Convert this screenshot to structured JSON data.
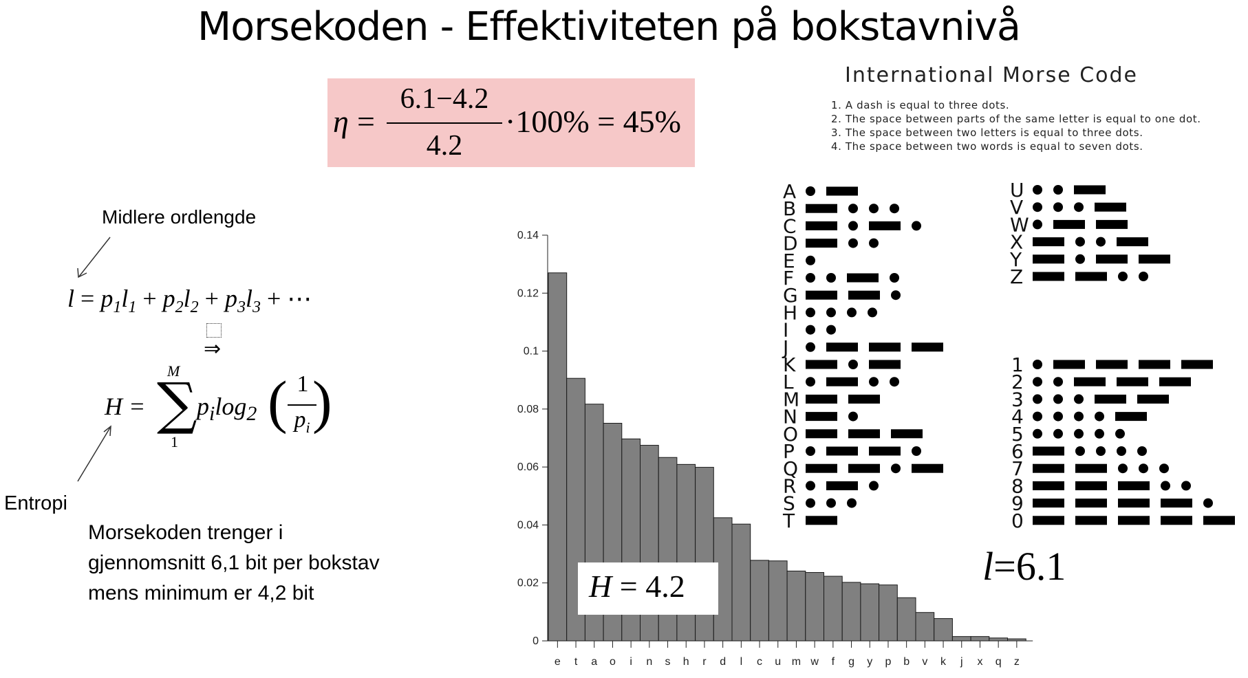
{
  "title": "Morsekoden - Effektiviteten på bokstavnivå",
  "efficiency": {
    "eta": "η",
    "equals": "=",
    "numerator": "6.1−4.2",
    "denominator": "4.2",
    "rest": "·100% = 45%",
    "highlight_color": "#f6c8c8"
  },
  "morse_chart": {
    "title": "International Morse Code",
    "rules": [
      "1. A dash is equal to three dots.",
      "2. The space between parts of the same letter is equal to one dot.",
      "3. The space between two letters is equal to three dots.",
      "4. The space between two words is equal to seven dots."
    ],
    "letters": [
      {
        "c": "A",
        "code": ".-"
      },
      {
        "c": "B",
        "code": "-..."
      },
      {
        "c": "C",
        "code": "-.-."
      },
      {
        "c": "D",
        "code": "-.."
      },
      {
        "c": "E",
        "code": "."
      },
      {
        "c": "F",
        "code": "..-."
      },
      {
        "c": "G",
        "code": "--."
      },
      {
        "c": "H",
        "code": "...."
      },
      {
        "c": "I",
        "code": ".."
      },
      {
        "c": "J",
        "code": ".---"
      },
      {
        "c": "K",
        "code": "-.-"
      },
      {
        "c": "L",
        "code": ".-.."
      },
      {
        "c": "M",
        "code": "--"
      },
      {
        "c": "N",
        "code": "-."
      },
      {
        "c": "O",
        "code": "---"
      },
      {
        "c": "P",
        "code": ".--."
      },
      {
        "c": "Q",
        "code": "--.-"
      },
      {
        "c": "R",
        "code": ".-."
      },
      {
        "c": "S",
        "code": "..."
      },
      {
        "c": "T",
        "code": "-"
      }
    ],
    "letters2": [
      {
        "c": "U",
        "code": "..-"
      },
      {
        "c": "V",
        "code": "...-"
      },
      {
        "c": "W",
        "code": ".--"
      },
      {
        "c": "X",
        "code": "-..-"
      },
      {
        "c": "Y",
        "code": "-.--"
      },
      {
        "c": "Z",
        "code": "--.."
      }
    ],
    "digits": [
      {
        "c": "1",
        "code": ".----"
      },
      {
        "c": "2",
        "code": "..---"
      },
      {
        "c": "3",
        "code": "...--"
      },
      {
        "c": "4",
        "code": "....-"
      },
      {
        "c": "5",
        "code": "....."
      },
      {
        "c": "6",
        "code": "-...."
      },
      {
        "c": "7",
        "code": "--..."
      },
      {
        "c": "8",
        "code": "---.."
      },
      {
        "c": "9",
        "code": "----."
      },
      {
        "c": "0",
        "code": "-----"
      }
    ]
  },
  "labels": {
    "midlere": "Midlere ordlengde",
    "entropi": "Entropi"
  },
  "formulas": {
    "l_lhs": "l",
    "l_terms": [
      {
        "p": "p",
        "psub": "1",
        "l": "l",
        "lsub": "1"
      },
      {
        "p": "p",
        "psub": "2",
        "l": "l",
        "lsub": "2"
      },
      {
        "p": "p",
        "psub": "3",
        "l": "l",
        "lsub": "3"
      }
    ],
    "l_tail": "+ ⋯",
    "implies": "⇒",
    "h_lhs": "H =",
    "sigma": "∑",
    "sigma_upper": "M",
    "sigma_lower": "1",
    "h_body_p": "p",
    "h_body_psub": "i",
    "h_body_log": "log",
    "h_body_logsub": "2",
    "h_frac_num": "1",
    "h_frac_den": "p",
    "h_frac_densub": "i"
  },
  "paragraph": [
    "Morsekoden trenger i",
    "gjennomsnitt 6,1 bit per bokstav",
    "mens minimum er 4,2 bit"
  ],
  "h_value": {
    "lhs": "H",
    "eq": "=",
    "val": "4.2"
  },
  "l_value": {
    "lhs": "l",
    "eq": "=",
    "val": "6.1"
  },
  "chart_data": {
    "type": "bar",
    "categories": [
      "e",
      "t",
      "a",
      "o",
      "i",
      "n",
      "s",
      "h",
      "r",
      "d",
      "l",
      "c",
      "u",
      "m",
      "w",
      "f",
      "g",
      "y",
      "p",
      "b",
      "v",
      "k",
      "j",
      "x",
      "q",
      "z"
    ],
    "values": [
      0.127,
      0.0906,
      0.0817,
      0.0751,
      0.0697,
      0.0675,
      0.0633,
      0.0609,
      0.0599,
      0.0425,
      0.0403,
      0.0278,
      0.0276,
      0.0241,
      0.0236,
      0.0223,
      0.0202,
      0.0197,
      0.0193,
      0.0149,
      0.0098,
      0.0077,
      0.0015,
      0.0015,
      0.001,
      0.0007
    ],
    "ylim": [
      0,
      0.14
    ],
    "yticks": [
      "0",
      "0.02",
      "0.04",
      "0.06",
      "0.08",
      "0.1",
      "0.12",
      "0.14"
    ],
    "title": "",
    "xlabel": "",
    "ylabel": "",
    "bar_color": "#808080",
    "grid": false
  }
}
